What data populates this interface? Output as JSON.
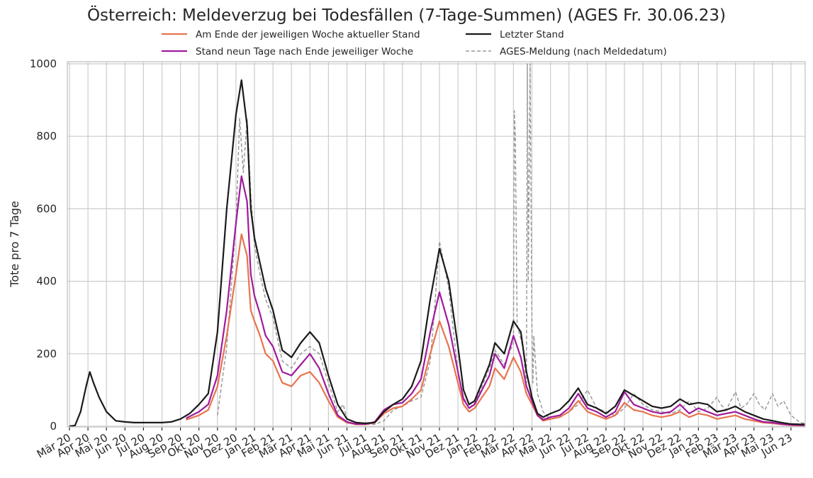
{
  "chart_data": {
    "type": "line",
    "title": "Österreich: Meldeverzug bei Todesfällen (7-Tage-Summen) (AGES Fr. 30.06.23)",
    "xlabel": "",
    "ylabel": "Tote pro 7 Tage",
    "ylim": [
      0,
      1000
    ],
    "yticks": [
      0,
      200,
      400,
      600,
      800,
      1000
    ],
    "grid": true,
    "legend_position": "top",
    "x_tick_labels": [
      "Mär 20",
      "Apr 20",
      "Mai 20",
      "Jun 20",
      "Jul 20",
      "Aug 20",
      "Sep 20",
      "Okt 20",
      "Nov 20",
      "Dez 20",
      "Jan 21",
      "Feb 21",
      "Mär 21",
      "Apr 21",
      "Mai 21",
      "Jun 21",
      "Jul 21",
      "Aug 21",
      "Sep 21",
      "Okt 21",
      "Nov 21",
      "Dez 21",
      "Jan 22",
      "Feb 22",
      "Mär 22",
      "Apr 22",
      "Mai 22",
      "Jun 22",
      "Jul 22",
      "Aug 22",
      "Sep 22",
      "Okt 22",
      "Nov 22",
      "Dez 22",
      "Jan 23",
      "Feb 23",
      "Mär 23",
      "Apr 23",
      "Mai 23",
      "Jun 23"
    ],
    "x_unit": "months since Mär 20",
    "series": [
      {
        "name": "Am Ende der jeweiligen Woche aktueller Stand",
        "color": "#e8734f",
        "x": [
          6.3,
          7,
          7.5,
          8,
          8.5,
          9,
          9.3,
          9.6,
          9.8,
          10,
          10.3,
          10.6,
          11,
          11.5,
          12,
          12.5,
          13,
          13.5,
          14,
          14.5,
          15,
          15.5,
          16,
          16.5,
          17,
          17.5,
          18,
          18.5,
          19,
          19.5,
          20,
          20.5,
          21,
          21.3,
          21.6,
          21.9,
          22.3,
          22.7,
          23,
          23.5,
          24,
          24.4,
          24.7,
          25,
          25.3,
          25.6,
          26,
          26.5,
          27,
          27.5,
          28,
          28.5,
          29,
          29.5,
          30,
          30.5,
          31,
          31.5,
          32,
          32.5,
          33,
          33.5,
          34,
          34.5,
          35,
          35.5,
          36,
          36.5,
          37,
          37.5,
          38,
          38.5,
          39,
          39.5,
          40
        ],
        "values": [
          18,
          30,
          45,
          110,
          250,
          420,
          530,
          470,
          320,
          290,
          250,
          200,
          180,
          120,
          110,
          140,
          150,
          120,
          70,
          25,
          10,
          5,
          5,
          10,
          35,
          50,
          55,
          75,
          100,
          200,
          290,
          220,
          120,
          60,
          40,
          50,
          80,
          110,
          160,
          130,
          190,
          150,
          90,
          60,
          30,
          15,
          20,
          25,
          40,
          70,
          40,
          30,
          20,
          30,
          65,
          45,
          40,
          30,
          25,
          30,
          40,
          25,
          35,
          30,
          20,
          25,
          30,
          20,
          15,
          10,
          8,
          5,
          3,
          2,
          2
        ]
      },
      {
        "name": "Stand neun Tage nach Ende jeweiliger Woche",
        "color": "#a01a9c",
        "x": [
          6.3,
          7,
          7.5,
          8,
          8.5,
          9,
          9.3,
          9.6,
          9.8,
          10,
          10.3,
          10.6,
          11,
          11.5,
          12,
          12.5,
          13,
          13.5,
          14,
          14.5,
          15,
          15.5,
          16,
          16.5,
          17,
          17.5,
          18,
          18.5,
          19,
          19.5,
          20,
          20.5,
          21,
          21.3,
          21.6,
          21.9,
          22.3,
          22.7,
          23,
          23.5,
          24,
          24.4,
          24.7,
          25,
          25.3,
          25.6,
          26,
          26.5,
          27,
          27.5,
          28,
          28.5,
          29,
          29.5,
          30,
          30.5,
          31,
          31.5,
          32,
          32.5,
          33,
          33.5,
          34,
          34.5,
          35,
          35.5,
          36,
          36.5,
          37,
          37.5,
          38,
          38.5,
          39,
          39.5,
          40
        ],
        "values": [
          22,
          40,
          60,
          140,
          320,
          560,
          690,
          620,
          420,
          360,
          310,
          250,
          220,
          150,
          140,
          170,
          200,
          160,
          90,
          30,
          12,
          6,
          6,
          12,
          45,
          60,
          65,
          90,
          130,
          260,
          370,
          280,
          150,
          75,
          50,
          60,
          100,
          140,
          200,
          160,
          250,
          190,
          110,
          70,
          30,
          18,
          25,
          30,
          50,
          90,
          50,
          40,
          25,
          40,
          95,
          60,
          50,
          40,
          35,
          40,
          60,
          35,
          50,
          40,
          30,
          35,
          40,
          30,
          20,
          12,
          10,
          6,
          4,
          3,
          2
        ]
      },
      {
        "name": "Letzter Stand",
        "color": "#1a1a1a",
        "x": [
          0,
          0.3,
          0.6,
          0.9,
          1.1,
          1.3,
          1.6,
          2,
          2.5,
          3,
          3.5,
          4,
          4.5,
          5,
          5.5,
          6,
          6.5,
          7,
          7.5,
          8,
          8.5,
          9,
          9.3,
          9.6,
          9.8,
          10,
          10.3,
          10.6,
          11,
          11.5,
          12,
          12.5,
          13,
          13.5,
          14,
          14.5,
          15,
          15.5,
          16,
          16.5,
          17,
          17.5,
          18,
          18.5,
          19,
          19.5,
          20,
          20.5,
          21,
          21.3,
          21.6,
          21.9,
          22.3,
          22.7,
          23,
          23.5,
          24,
          24.4,
          24.7,
          25,
          25.3,
          25.6,
          26,
          26.5,
          27,
          27.5,
          28,
          28.5,
          29,
          29.5,
          30,
          30.5,
          31,
          31.5,
          32,
          32.5,
          33,
          33.5,
          34,
          34.5,
          35,
          35.5,
          36,
          36.5,
          37,
          37.5,
          38,
          38.5,
          39,
          39.5,
          40
        ],
        "values": [
          0,
          2,
          40,
          110,
          150,
          120,
          80,
          40,
          15,
          12,
          10,
          10,
          10,
          10,
          12,
          20,
          35,
          60,
          90,
          260,
          600,
          860,
          955,
          830,
          600,
          520,
          450,
          380,
          320,
          210,
          190,
          230,
          260,
          230,
          140,
          60,
          20,
          10,
          8,
          10,
          40,
          60,
          75,
          110,
          180,
          350,
          490,
          400,
          220,
          100,
          60,
          70,
          120,
          170,
          230,
          200,
          290,
          260,
          150,
          80,
          35,
          25,
          35,
          45,
          70,
          105,
          60,
          50,
          35,
          55,
          100,
          85,
          70,
          55,
          50,
          55,
          75,
          60,
          65,
          60,
          40,
          45,
          55,
          40,
          30,
          20,
          15,
          10,
          6,
          5,
          5
        ]
      },
      {
        "name": "AGES-Meldung (nach Meldedatum)",
        "color": "#999999",
        "dash": true,
        "x": [
          8,
          8.5,
          9,
          9.2,
          9.4,
          9.6,
          9.8,
          10,
          10.3,
          10.6,
          11,
          11.5,
          12,
          12.5,
          13,
          13.5,
          14,
          14.5,
          14.8,
          15,
          15.5,
          16,
          16.5,
          17,
          17.5,
          18,
          18.5,
          19,
          19.5,
          19.7,
          20,
          20.5,
          21,
          21.3,
          21.6,
          21.9,
          22.3,
          22.7,
          23,
          23.5,
          24,
          24.05,
          24.1,
          24.2,
          24.5,
          24.7,
          24.75,
          24.8,
          24.9,
          25,
          25.05,
          25.1,
          25.3,
          25.6,
          26,
          26.5,
          27,
          27.5,
          28,
          28.5,
          29,
          29.5,
          30,
          30.5,
          31,
          31.5,
          32,
          32.5,
          33,
          33.5,
          34,
          34.5,
          35,
          35.2,
          35.5,
          36,
          36.3,
          36.6,
          37,
          37.3,
          37.6,
          38,
          38.3,
          38.6,
          39,
          39.5,
          40
        ],
        "values": [
          30,
          220,
          560,
          850,
          700,
          850,
          640,
          500,
          420,
          350,
          300,
          180,
          160,
          200,
          220,
          200,
          120,
          40,
          60,
          20,
          10,
          5,
          5,
          15,
          45,
          55,
          70,
          80,
          180,
          300,
          510,
          380,
          150,
          80,
          50,
          65,
          110,
          160,
          210,
          170,
          230,
          870,
          800,
          280,
          220,
          120,
          1000,
          400,
          1000,
          260,
          120,
          250,
          90,
          40,
          20,
          25,
          40,
          60,
          100,
          50,
          40,
          30,
          50,
          90,
          60,
          45,
          40,
          35,
          45,
          70,
          40,
          50,
          80,
          60,
          45,
          95,
          50,
          60,
          90,
          60,
          45,
          90,
          55,
          70,
          30,
          10,
          5
        ]
      }
    ]
  }
}
